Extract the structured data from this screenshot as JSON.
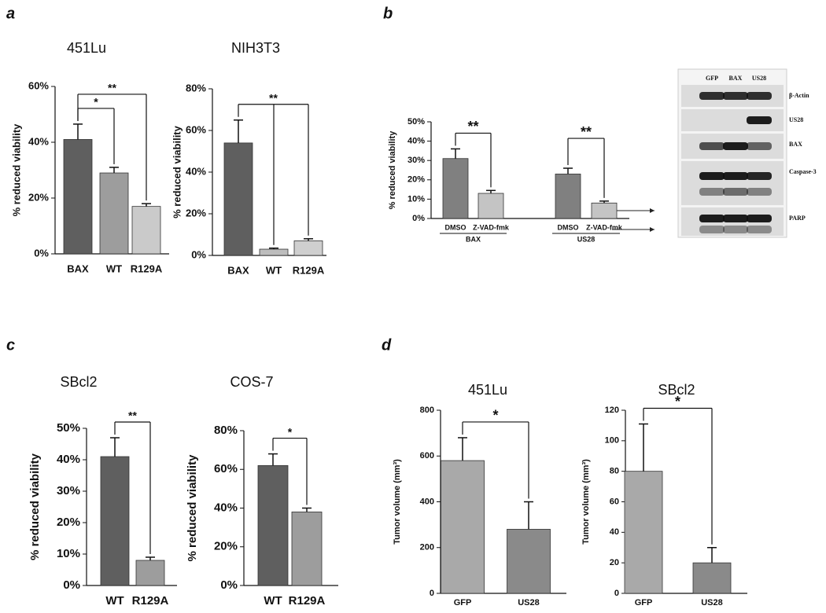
{
  "panels": [
    "a",
    "b",
    "c",
    "d"
  ],
  "blot": {
    "lanes": [
      "GFP",
      "BAX",
      "US28"
    ],
    "bands": [
      "β-Actin",
      "US28",
      "BAX",
      "Caspase-3",
      "PARP"
    ]
  },
  "chart_data": [
    {
      "type": "bar",
      "title": "451Lu",
      "ylabel": "% reduced viability",
      "categories": [
        "BAX",
        "WT",
        "R129A"
      ],
      "values": [
        41,
        29,
        17
      ],
      "errors": [
        5.5,
        2,
        1
      ],
      "colors": [
        "#5f5f5f",
        "#9d9d9d",
        "#cacaca"
      ],
      "ylim": [
        0,
        60
      ],
      "yticks": [
        {
          "value": 0,
          "label": "0%"
        },
        {
          "value": 20,
          "label": "20%"
        },
        {
          "value": 40,
          "label": "40%"
        },
        {
          "value": 60,
          "label": "60%"
        }
      ],
      "annotations": [
        {
          "text": "*",
          "between": [
            0,
            1
          ]
        },
        {
          "text": "**",
          "between": [
            0,
            2
          ]
        }
      ]
    },
    {
      "type": "bar",
      "title": "NIH3T3",
      "ylabel": "% reduced viability",
      "categories": [
        "BAX",
        "WT",
        "R129A"
      ],
      "values": [
        54,
        3,
        7
      ],
      "errors": [
        11,
        0.5,
        1
      ],
      "colors": [
        "#5f5f5f",
        "#bdbdbd",
        "#cfcfcf"
      ],
      "ylim": [
        0,
        80
      ],
      "yticks": [
        {
          "value": 0,
          "label": "0%"
        },
        {
          "value": 20,
          "label": "20%"
        },
        {
          "value": 40,
          "label": "40%"
        },
        {
          "value": 60,
          "label": "60%"
        },
        {
          "value": 80,
          "label": "80%"
        }
      ],
      "annotations": [
        {
          "text": "**",
          "between": [
            0,
            1,
            2
          ]
        }
      ]
    },
    {
      "type": "bar",
      "ylabel": "% reduced viability",
      "categories": [
        "DMSO",
        "Z-VAD-fmk",
        "DMSO",
        "Z-VAD-fmk"
      ],
      "values": [
        31,
        13,
        23,
        8
      ],
      "errors": [
        5,
        1.5,
        3,
        1
      ],
      "colors": [
        "#808080",
        "#c4c4c4",
        "#808080",
        "#c4c4c4"
      ],
      "groups": [
        {
          "name": "BAX",
          "categories": [
            0,
            1
          ]
        },
        {
          "name": "US28",
          "categories": [
            2,
            3
          ]
        }
      ],
      "ylim": [
        0,
        50
      ],
      "yticks": [
        {
          "value": 0,
          "label": "0%"
        },
        {
          "value": 10,
          "label": "10%"
        },
        {
          "value": 20,
          "label": "20%"
        },
        {
          "value": 30,
          "label": "30%"
        },
        {
          "value": 40,
          "label": "40%"
        },
        {
          "value": 50,
          "label": "50%"
        }
      ],
      "annotations": [
        {
          "text": "**",
          "between": [
            0,
            1
          ]
        },
        {
          "text": "**",
          "between": [
            2,
            3
          ]
        }
      ]
    },
    {
      "type": "bar",
      "title": "SBcl2",
      "ylabel": "% reduced viability",
      "categories": [
        "WT",
        "R129A"
      ],
      "values": [
        41,
        8
      ],
      "errors": [
        6,
        1
      ],
      "colors": [
        "#5f5f5f",
        "#9d9d9d"
      ],
      "ylim": [
        0,
        50
      ],
      "yticks": [
        {
          "value": 0,
          "label": "0%"
        },
        {
          "value": 10,
          "label": "10%"
        },
        {
          "value": 20,
          "label": "20%"
        },
        {
          "value": 30,
          "label": "30%"
        },
        {
          "value": 40,
          "label": "40%"
        },
        {
          "value": 50,
          "label": "50%"
        }
      ],
      "annotations": [
        {
          "text": "**",
          "between": [
            0,
            1
          ]
        }
      ]
    },
    {
      "type": "bar",
      "title": "COS-7",
      "ylabel": "% reduced viability",
      "categories": [
        "WT",
        "R129A"
      ],
      "values": [
        62,
        38
      ],
      "errors": [
        6,
        2
      ],
      "colors": [
        "#5f5f5f",
        "#9d9d9d"
      ],
      "ylim": [
        0,
        80
      ],
      "yticks": [
        {
          "value": 0,
          "label": "0%"
        },
        {
          "value": 20,
          "label": "20%"
        },
        {
          "value": 40,
          "label": "40%"
        },
        {
          "value": 60,
          "label": "60%"
        },
        {
          "value": 80,
          "label": "80%"
        }
      ],
      "annotations": [
        {
          "text": "*",
          "between": [
            0,
            1
          ]
        }
      ]
    },
    {
      "type": "bar",
      "title": "451Lu",
      "ylabel": "Tumor volume (mm³)",
      "categories": [
        "GFP",
        "US28"
      ],
      "values": [
        580,
        280
      ],
      "errors": [
        100,
        120
      ],
      "colors": [
        "#a9a9a9",
        "#8a8a8a"
      ],
      "ylim": [
        0,
        800
      ],
      "yticks": [
        0,
        200,
        400,
        600,
        800
      ],
      "annotations": [
        {
          "text": "*",
          "between": [
            0,
            1
          ]
        }
      ]
    },
    {
      "type": "bar",
      "title": "SBcl2",
      "ylabel": "Tumor volume (mm³)",
      "categories": [
        "GFP",
        "US28"
      ],
      "values": [
        80,
        20
      ],
      "errors": [
        31,
        10
      ],
      "colors": [
        "#a9a9a9",
        "#8a8a8a"
      ],
      "ylim": [
        0,
        120
      ],
      "yticks": [
        0,
        20,
        40,
        60,
        80,
        100,
        120
      ],
      "annotations": [
        {
          "text": "*",
          "between": [
            0,
            1
          ]
        }
      ]
    }
  ]
}
